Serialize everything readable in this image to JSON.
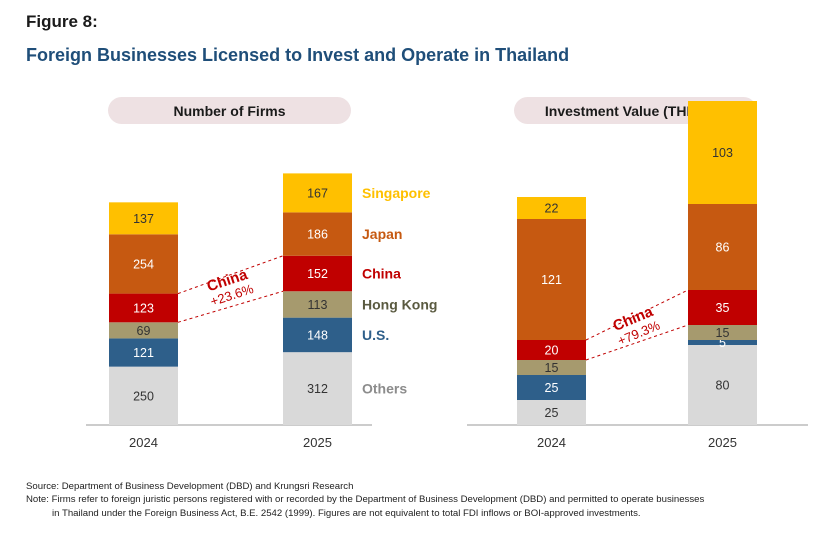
{
  "figure_label": "Figure 8:",
  "title": "Foreign Businesses Licensed to Invest and Operate in Thailand",
  "chart_data": [
    {
      "type": "bar",
      "stacked": true,
      "title": "Number of Firms",
      "categories": [
        "2024",
        "2025"
      ],
      "series": [
        {
          "name": "Others",
          "values": [
            250,
            312
          ],
          "color": "#d9d9d9"
        },
        {
          "name": "U.S.",
          "values": [
            121,
            148
          ],
          "color": "#2e5f8a"
        },
        {
          "name": "Hong Kong",
          "values": [
            69,
            113
          ],
          "color": "#a69a6e"
        },
        {
          "name": "China",
          "values": [
            123,
            152
          ],
          "color": "#c00000"
        },
        {
          "name": "Japan",
          "values": [
            254,
            186
          ],
          "color": "#c65911"
        },
        {
          "name": "Singapore",
          "values": [
            137,
            167
          ],
          "color": "#ffc000"
        }
      ],
      "legend_colors": [
        "#8c8c8c",
        "#2e5f8a",
        "#5a5a40",
        "#c00000",
        "#c65911",
        "#ffc000"
      ],
      "annotation": {
        "line1": "China",
        "line2": "+23.6%"
      }
    },
    {
      "type": "bar",
      "stacked": true,
      "title": "Investment Value (THB, bn)",
      "categories": [
        "2024",
        "2025"
      ],
      "series": [
        {
          "name": "Others",
          "values": [
            25,
            80
          ],
          "color": "#d9d9d9"
        },
        {
          "name": "U.S.",
          "values": [
            25,
            5
          ],
          "color": "#2e5f8a"
        },
        {
          "name": "Hong Kong",
          "values": [
            15,
            15
          ],
          "color": "#a69a6e"
        },
        {
          "name": "China",
          "values": [
            20,
            35
          ],
          "color": "#c00000"
        },
        {
          "name": "Japan",
          "values": [
            121,
            86
          ],
          "color": "#c65911"
        },
        {
          "name": "Singapore",
          "values": [
            22,
            103
          ],
          "color": "#ffc000"
        }
      ],
      "annotation": {
        "line1": "China",
        "line2": "+79.3%"
      }
    }
  ],
  "footer": {
    "source": "Source: Department of Business Development (DBD) and Krungsri Research",
    "note_line1": "Note: Firms refer to foreign juristic persons registered with or recorded by the Department of Business Development (DBD) and permitted to operate businesses",
    "note_line2": "in Thailand under the Foreign Business Act, B.E. 2542 (1999). Figures are not equivalent to total FDI inflows or BOI-approved investments."
  }
}
